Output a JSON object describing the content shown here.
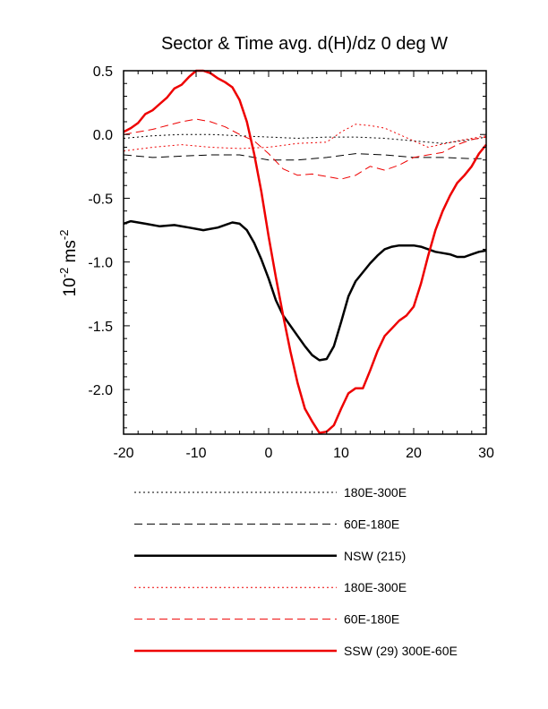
{
  "chart_data": {
    "type": "line",
    "title": "Sector & Time avg. d(H)/dz 0 deg W",
    "xlabel": "",
    "ylabel_base": "10",
    "ylabel_exp": "-2",
    "ylabel_unit": "ms",
    "ylabel_unit_exp": "-2",
    "xlim": [
      -20,
      30
    ],
    "ylim": [
      -2.35,
      0.5
    ],
    "xticks": [
      -20,
      -10,
      0,
      10,
      20,
      30
    ],
    "xtick_labels": [
      "-20",
      "-10",
      "0",
      "10",
      "20",
      "30"
    ],
    "yticks": [
      0.5,
      0.0,
      -0.5,
      -1.0,
      -1.5,
      -2.0
    ],
    "ytick_labels": [
      "0.5",
      "0.0",
      "-0.5",
      "-1.0",
      "-1.5",
      "-2.0"
    ],
    "grid": false,
    "legend_position": "below",
    "series": [
      {
        "name": "180E-300E",
        "color": "#000000",
        "dash": "dot",
        "width": 1,
        "x": [
          -20,
          -16,
          -12,
          -8,
          -4,
          0,
          4,
          8,
          12,
          16,
          20,
          24,
          28,
          30
        ],
        "y": [
          -0.03,
          -0.01,
          0.0,
          0.0,
          -0.01,
          -0.02,
          -0.03,
          -0.02,
          -0.02,
          -0.03,
          -0.05,
          -0.07,
          -0.04,
          -0.02
        ]
      },
      {
        "name": "60E-180E",
        "color": "#000000",
        "dash": "dash",
        "width": 1,
        "x": [
          -20,
          -16,
          -12,
          -8,
          -4,
          0,
          4,
          8,
          12,
          16,
          20,
          24,
          28,
          30
        ],
        "y": [
          -0.16,
          -0.18,
          -0.17,
          -0.16,
          -0.16,
          -0.2,
          -0.2,
          -0.18,
          -0.15,
          -0.16,
          -0.18,
          -0.18,
          -0.19,
          -0.19
        ]
      },
      {
        "name": "NSW (215)",
        "color": "#000000",
        "dash": "solid",
        "width": 2.5,
        "x": [
          -20,
          -19,
          -17,
          -15,
          -13,
          -11,
          -9,
          -7,
          -5,
          -4,
          -3,
          -2,
          -1,
          0,
          1,
          2,
          3,
          4,
          5,
          6,
          7,
          8,
          9,
          10,
          11,
          12,
          13,
          14,
          15,
          16,
          17,
          18,
          19,
          20,
          21,
          22,
          23,
          24,
          25,
          26,
          27,
          28,
          29,
          30
        ],
        "y": [
          -0.7,
          -0.68,
          -0.7,
          -0.72,
          -0.71,
          -0.73,
          -0.75,
          -0.73,
          -0.69,
          -0.7,
          -0.75,
          -0.85,
          -0.98,
          -1.13,
          -1.3,
          -1.42,
          -1.5,
          -1.58,
          -1.66,
          -1.73,
          -1.77,
          -1.76,
          -1.66,
          -1.47,
          -1.27,
          -1.15,
          -1.08,
          -1.01,
          -0.95,
          -0.9,
          -0.88,
          -0.87,
          -0.87,
          -0.87,
          -0.88,
          -0.9,
          -0.92,
          -0.93,
          -0.94,
          -0.96,
          -0.96,
          -0.94,
          -0.92,
          -0.91
        ]
      },
      {
        "name": "180E-300E",
        "color": "#ee0000",
        "dash": "dot",
        "width": 1,
        "x": [
          -20,
          -16,
          -12,
          -8,
          -4,
          0,
          4,
          8,
          10,
          12,
          14,
          16,
          18,
          20,
          22,
          26,
          30
        ],
        "y": [
          -0.13,
          -0.1,
          -0.08,
          -0.1,
          -0.11,
          -0.1,
          -0.07,
          -0.06,
          0.02,
          0.08,
          0.07,
          0.05,
          0.0,
          -0.05,
          -0.1,
          -0.05,
          -0.01
        ]
      },
      {
        "name": "60E-180E",
        "color": "#ee0000",
        "dash": "dash",
        "width": 1,
        "x": [
          -20,
          -16,
          -12,
          -10,
          -8,
          -6,
          -4,
          -2,
          0,
          2,
          4,
          6,
          8,
          10,
          12,
          14,
          16,
          18,
          20,
          22,
          24,
          26,
          28,
          30
        ],
        "y": [
          0.0,
          0.04,
          0.1,
          0.12,
          0.1,
          0.06,
          0.0,
          -0.05,
          -0.15,
          -0.27,
          -0.32,
          -0.31,
          -0.33,
          -0.35,
          -0.32,
          -0.25,
          -0.28,
          -0.24,
          -0.18,
          -0.16,
          -0.14,
          -0.08,
          -0.04,
          -0.02
        ]
      },
      {
        "name": "SSW (29) 300E-60E",
        "color": "#ee0000",
        "dash": "solid",
        "width": 2.5,
        "x": [
          -20,
          -19,
          -18,
          -17,
          -16,
          -15,
          -14,
          -13,
          -12,
          -11,
          -10,
          -9,
          -8,
          -7,
          -6,
          -5,
          -4,
          -3,
          -2,
          -1,
          0,
          1,
          2,
          3,
          4,
          5,
          6,
          7,
          8,
          9,
          10,
          11,
          12,
          13,
          14,
          15,
          16,
          17,
          18,
          19,
          20,
          21,
          22,
          23,
          24,
          25,
          26,
          27,
          28,
          29,
          30
        ],
        "y": [
          0.02,
          0.05,
          0.09,
          0.16,
          0.19,
          0.24,
          0.29,
          0.36,
          0.39,
          0.45,
          0.5,
          0.5,
          0.48,
          0.44,
          0.41,
          0.37,
          0.27,
          0.1,
          -0.15,
          -0.45,
          -0.8,
          -1.12,
          -1.42,
          -1.7,
          -1.95,
          -2.15,
          -2.25,
          -2.34,
          -2.33,
          -2.28,
          -2.15,
          -2.03,
          -1.99,
          -1.99,
          -1.85,
          -1.7,
          -1.58,
          -1.52,
          -1.46,
          -1.42,
          -1.35,
          -1.17,
          -0.95,
          -0.75,
          -0.6,
          -0.48,
          -0.38,
          -0.32,
          -0.25,
          -0.15,
          -0.08
        ]
      }
    ]
  }
}
